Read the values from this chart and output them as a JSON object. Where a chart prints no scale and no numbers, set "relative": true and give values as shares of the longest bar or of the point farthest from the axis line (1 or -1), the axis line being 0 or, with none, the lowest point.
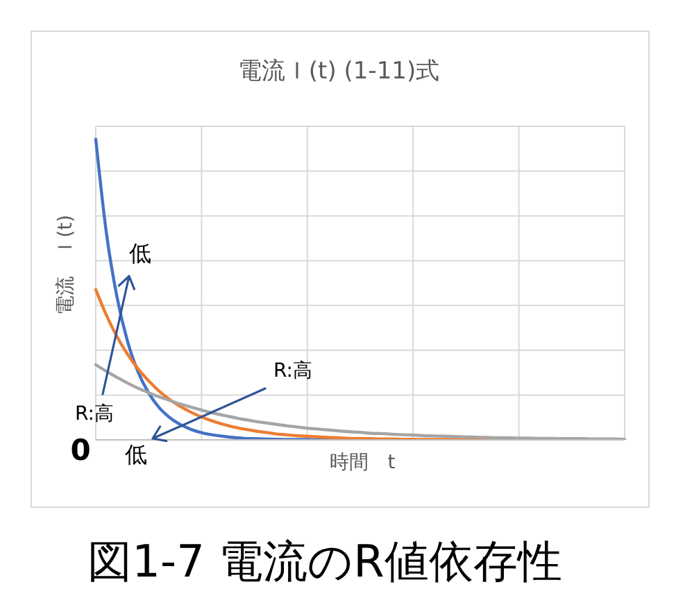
{
  "chart_data": {
    "type": "line",
    "title": "電流Ｉ(t) (1-11)式",
    "xlabel": "時間　t",
    "ylabel": "電流　Ｉ(t)",
    "relative": true,
    "grid": true,
    "categories": [
      null,
      null,
      null,
      null,
      null,
      null,
      null,
      null,
      null,
      null,
      null,
      null,
      null,
      null,
      null,
      null,
      null,
      null,
      null,
      null,
      null,
      null,
      null,
      null,
      null,
      null,
      null,
      null,
      null,
      null,
      null,
      null,
      null,
      null,
      null,
      null,
      null,
      null,
      null,
      null,
      null,
      null,
      null,
      null,
      null,
      null,
      null,
      null,
      null,
      null,
      null
    ],
    "series": [
      {
        "color": "#4472c4",
        "values": [
          1,
          0.689,
          0.476,
          0.328,
          0.226,
          0.156,
          0.107,
          0.074,
          0.051,
          0.035,
          0.024,
          0.017,
          0.012,
          0.008,
          0.005,
          0.004,
          0.003,
          0.002,
          0.001,
          0.001,
          0.001,
          0,
          0,
          0,
          null,
          null,
          null,
          null,
          null,
          null,
          null,
          null,
          null,
          null,
          null,
          null,
          null,
          null,
          null,
          null,
          null,
          null,
          null,
          null,
          null,
          null,
          null,
          null,
          null,
          null,
          null
        ]
      },
      {
        "color": "#ed7d31",
        "values": [
          0.5,
          0.415,
          0.344,
          0.285,
          0.236,
          0.196,
          0.162,
          0.134,
          0.111,
          0.092,
          0.076,
          0.063,
          0.052,
          0.043,
          0.036,
          0.03,
          0.025,
          0.02,
          0.017,
          0.014,
          0.012,
          0.01,
          0.008,
          0.007,
          0.005,
          0.005,
          0.004,
          0.003,
          0.003,
          0.002,
          0.002,
          0.001,
          0.001,
          0.001,
          0.001,
          0.001,
          0.001,
          0,
          0,
          null,
          null,
          null,
          null,
          null,
          null,
          null,
          null,
          null,
          null,
          null,
          null
        ]
      },
      {
        "color": "#a5a5a5",
        "values": [
          0.25,
          0.228,
          0.208,
          0.189,
          0.172,
          0.157,
          0.143,
          0.131,
          0.119,
          0.109,
          0.099,
          0.09,
          0.082,
          0.075,
          0.068,
          0.062,
          0.057,
          0.052,
          0.047,
          0.043,
          0.039,
          0.036,
          0.033,
          0.03,
          0.027,
          0.025,
          0.022,
          0.021,
          0.019,
          0.017,
          0.016,
          0.014,
          0.013,
          0.012,
          0.011,
          0.01,
          0.009,
          0.008,
          0.007,
          0.007,
          0.006,
          0.006,
          0.005,
          0.005,
          0.004,
          0.004,
          0.004,
          0.003,
          0.003,
          0.003,
          0.002
        ]
      }
    ],
    "annotations": [
      "低",
      "R:高",
      "R:高",
      "低",
      "0",
      "図1-7 電流のR値依存性"
    ]
  }
}
